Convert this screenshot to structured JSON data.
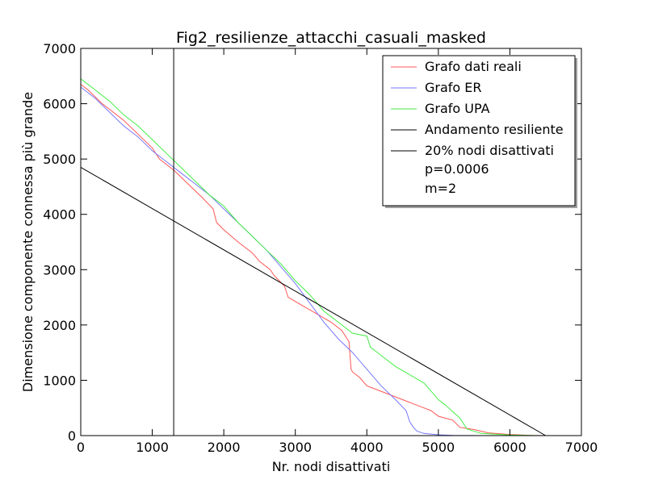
{
  "chart_data": {
    "type": "line",
    "title": "Fig2_resilienze_attacchi_casuali_masked",
    "xlabel": "Nr. nodi disattivati",
    "ylabel": "Dimensione componente connessa più grande",
    "xlim": [
      0,
      7000
    ],
    "ylim": [
      0,
      7000
    ],
    "xticks": [
      0,
      1000,
      2000,
      3000,
      4000,
      5000,
      6000,
      7000
    ],
    "yticks": [
      0,
      1000,
      2000,
      3000,
      4000,
      5000,
      6000,
      7000
    ],
    "grid": false,
    "legend_position": "top-right",
    "legend_extra": [
      "p=0.0006",
      "m=2"
    ],
    "series": [
      {
        "name": "Grafo dati reali",
        "color": "#ff5555",
        "x": [
          0,
          100,
          300,
          600,
          800,
          1000,
          1100,
          1300,
          1500,
          1700,
          1850,
          1900,
          2000,
          2200,
          2400,
          2500,
          2650,
          2700,
          2850,
          2900,
          3100,
          3300,
          3500,
          3650,
          3750,
          3780,
          3800,
          3900,
          4000,
          4200,
          4400,
          4600,
          4800,
          4900,
          5000,
          5200,
          5300,
          5500,
          5700,
          6000,
          6300,
          6500
        ],
        "y": [
          6350,
          6250,
          6000,
          5700,
          5450,
          5200,
          5000,
          4800,
          4550,
          4300,
          4100,
          3850,
          3720,
          3500,
          3300,
          3150,
          3000,
          2900,
          2700,
          2500,
          2350,
          2200,
          2050,
          1900,
          1700,
          1200,
          1150,
          1050,
          900,
          800,
          700,
          600,
          500,
          450,
          350,
          280,
          150,
          110,
          50,
          20,
          5,
          0
        ]
      },
      {
        "name": "Grafo ER",
        "color": "#7777ff",
        "x": [
          0,
          200,
          400,
          600,
          800,
          1000,
          1200,
          1400,
          1600,
          1800,
          2000,
          2200,
          2400,
          2600,
          2800,
          3000,
          3200,
          3400,
          3500,
          3600,
          3800,
          4000,
          4200,
          4400,
          4550,
          4600,
          4650,
          4700,
          4800,
          5000,
          5200,
          5400,
          5600
        ],
        "y": [
          6300,
          6100,
          5850,
          5600,
          5400,
          5150,
          4950,
          4750,
          4550,
          4350,
          4100,
          3850,
          3600,
          3350,
          3050,
          2750,
          2400,
          2050,
          1900,
          1750,
          1500,
          1200,
          900,
          650,
          450,
          250,
          150,
          80,
          40,
          15,
          5,
          2,
          0
        ]
      },
      {
        "name": "Grafo UPA",
        "color": "#44ee44",
        "x": [
          0,
          200,
          400,
          600,
          800,
          1000,
          1200,
          1400,
          1600,
          1800,
          2000,
          2200,
          2400,
          2600,
          2800,
          3000,
          3200,
          3400,
          3600,
          3800,
          4000,
          4050,
          4200,
          4400,
          4600,
          4800,
          4900,
          5000,
          5100,
          5300,
          5400,
          5600,
          6000,
          6400
        ],
        "y": [
          6450,
          6250,
          6050,
          5800,
          5600,
          5350,
          5100,
          4850,
          4600,
          4350,
          4150,
          3850,
          3600,
          3350,
          3100,
          2800,
          2550,
          2250,
          2050,
          1850,
          1800,
          1600,
          1450,
          1250,
          1100,
          950,
          800,
          650,
          550,
          320,
          120,
          40,
          10,
          0
        ]
      },
      {
        "name": "Andamento resiliente",
        "color": "#000000",
        "x": [
          0,
          6500
        ],
        "y": [
          4850,
          0
        ]
      },
      {
        "name": "20% nodi disattivati",
        "color": "#000000",
        "x": [
          1300,
          1300
        ],
        "y": [
          0,
          7000
        ]
      }
    ]
  }
}
